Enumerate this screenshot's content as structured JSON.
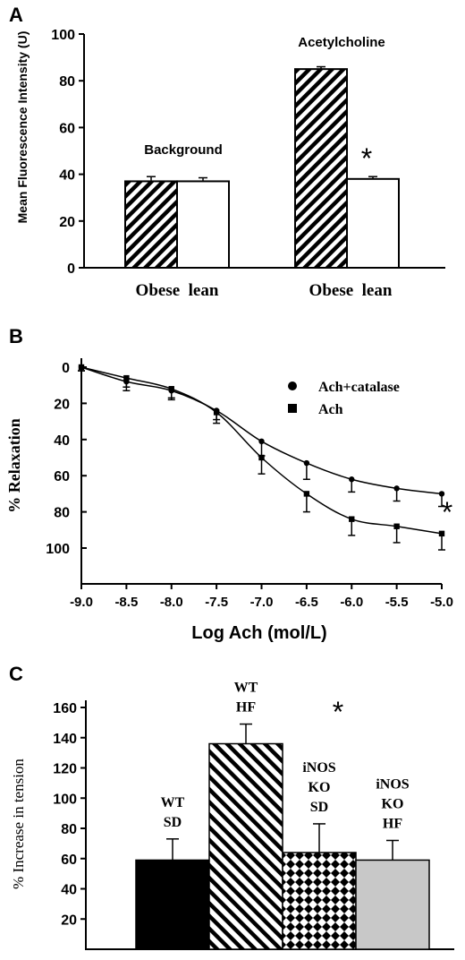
{
  "panels": {
    "A": {
      "letter": "A"
    },
    "B": {
      "letter": "B"
    },
    "C": {
      "letter": "C"
    }
  },
  "chart_data": [
    {
      "type": "bar",
      "panel": "A",
      "ylabel": "Mean Fluorescence Intensity (U)",
      "ylim": [
        0,
        100
      ],
      "yticks": [
        "0",
        "20",
        "40",
        "60",
        "80",
        "100"
      ],
      "groups": [
        {
          "label": "Background",
          "xlabel": "Obese  lean",
          "values": [
            37,
            37
          ],
          "errors": [
            2,
            1.5
          ]
        },
        {
          "label": "Acetylcholine",
          "xlabel": "Obese  lean",
          "values": [
            85,
            38
          ],
          "errors": [
            1,
            1
          ]
        }
      ],
      "series": [
        {
          "name": "Obese",
          "fill": "hatch"
        },
        {
          "name": "lean",
          "fill": "white"
        }
      ],
      "annotation": "*"
    },
    {
      "type": "line",
      "panel": "B",
      "xlabel": "Log Ach (mol/L)",
      "ylabel": "% Relaxation",
      "xlim": [
        -9.0,
        -5.0
      ],
      "ylim": [
        0,
        100
      ],
      "y_inverted": true,
      "xticks": [
        "-9.0",
        "-8.5",
        "-8.0",
        "-7.5",
        "-7.0",
        "-6.5",
        "-6.0",
        "-5.5",
        "-5.0"
      ],
      "yticks": [
        "0",
        "20",
        "40",
        "60",
        "80",
        "100"
      ],
      "series": [
        {
          "name": "Ach+catalase",
          "marker": "circle",
          "x": [
            -9.0,
            -8.5,
            -8.0,
            -7.5,
            -7.0,
            -6.5,
            -6.0,
            -5.5,
            -5.0
          ],
          "y": [
            0,
            8,
            13,
            24,
            41,
            53,
            62,
            67,
            70
          ],
          "err": [
            2,
            5,
            5,
            5,
            8,
            9,
            7,
            7,
            7
          ]
        },
        {
          "name": "Ach",
          "marker": "square",
          "x": [
            -9.0,
            -8.5,
            -8.0,
            -7.5,
            -7.0,
            -6.5,
            -6.0,
            -5.5,
            -5.0
          ],
          "y": [
            0,
            6,
            12,
            25,
            50,
            70,
            84,
            88,
            92
          ],
          "err": [
            2,
            5,
            5,
            6,
            9,
            10,
            9,
            9,
            9
          ]
        }
      ],
      "annotation": "*"
    },
    {
      "type": "bar",
      "panel": "C",
      "ylabel": "% Increase in tension",
      "ylim": [
        0,
        160
      ],
      "yticks": [
        "20",
        "40",
        "60",
        "80",
        "100",
        "120",
        "140",
        "160"
      ],
      "bars": [
        {
          "label_lines": [
            "WT",
            "SD"
          ],
          "value": 59,
          "error": 14,
          "fill": "black"
        },
        {
          "label_lines": [
            "WT",
            "HF"
          ],
          "value": 136,
          "error": 13,
          "fill": "diagonal"
        },
        {
          "label_lines": [
            "iNOS",
            "KO",
            "SD"
          ],
          "value": 64,
          "error": 19,
          "fill": "checker"
        },
        {
          "label_lines": [
            "iNOS",
            "KO",
            "HF"
          ],
          "value": 59,
          "error": 13,
          "fill": "gray"
        }
      ],
      "annotation": "*"
    }
  ]
}
